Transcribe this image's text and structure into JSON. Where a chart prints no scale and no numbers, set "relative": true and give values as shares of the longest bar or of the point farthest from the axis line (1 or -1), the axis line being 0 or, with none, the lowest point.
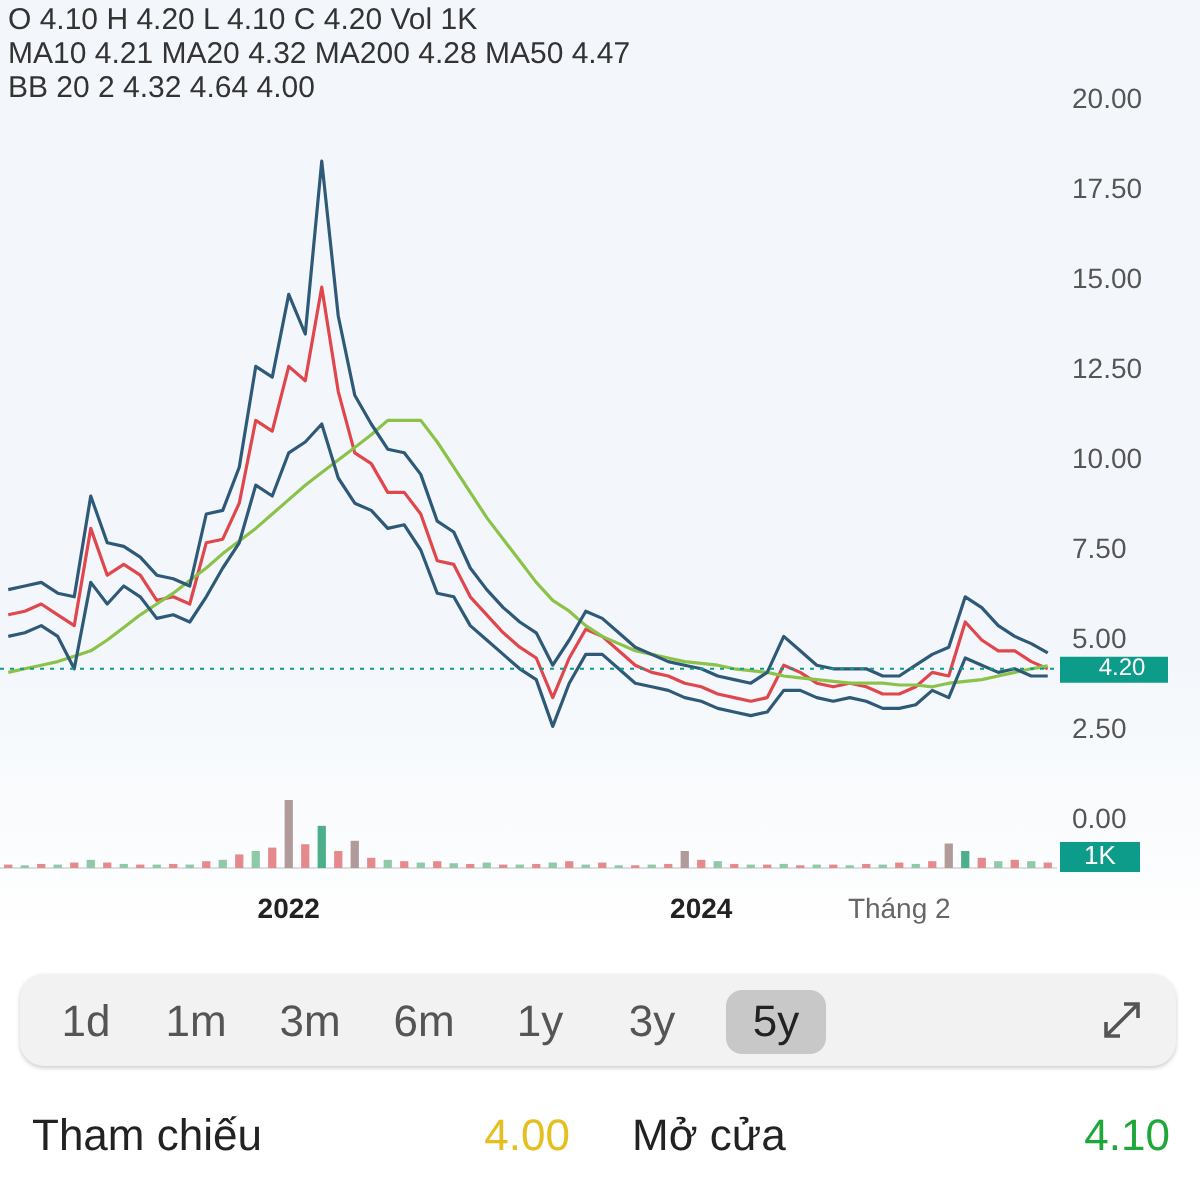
{
  "chart_data": [
    {
      "type": "line",
      "categories": [
        null,
        null,
        null,
        null,
        null,
        null,
        null,
        null,
        null,
        null,
        null,
        null,
        null,
        null,
        null,
        null,
        null,
        "2022",
        null,
        null,
        null,
        null,
        null,
        null,
        null,
        null,
        null,
        null,
        null,
        null,
        null,
        null,
        null,
        null,
        null,
        null,
        null,
        null,
        null,
        null,
        null,
        null,
        "2024",
        null,
        null,
        null,
        null,
        null,
        null,
        null,
        null,
        null,
        null,
        null,
        "Tháng 2",
        null,
        null,
        null,
        null,
        null,
        null,
        null,
        null,
        null
      ],
      "series": [
        {
          "color": "#2e5a78",
          "values": [
            6.4,
            6.5,
            6.6,
            6.3,
            6.2,
            9.0,
            7.7,
            7.6,
            7.3,
            6.8,
            6.7,
            6.5,
            8.5,
            8.6,
            9.8,
            12.6,
            12.3,
            14.6,
            13.5,
            18.3,
            14.0,
            11.8,
            11.0,
            10.3,
            10.2,
            9.6,
            8.3,
            8.0,
            7.0,
            6.4,
            5.9,
            5.5,
            5.2,
            4.3,
            5.0,
            5.8,
            5.6,
            5.2,
            4.8,
            4.6,
            4.4,
            4.3,
            4.2,
            4.0,
            3.9,
            3.8,
            4.1,
            5.1,
            4.7,
            4.3,
            4.2,
            4.2,
            4.2,
            4.0,
            4.0,
            4.3,
            4.6,
            4.8,
            6.2,
            5.9,
            5.4,
            5.1,
            4.9,
            4.64
          ]
        },
        {
          "color": "#2e5a78",
          "values": [
            5.1,
            5.2,
            5.4,
            5.1,
            4.2,
            6.6,
            6.0,
            6.5,
            6.2,
            5.6,
            5.7,
            5.5,
            6.2,
            7.0,
            7.7,
            9.3,
            9.0,
            10.2,
            10.5,
            11.0,
            9.5,
            8.8,
            8.6,
            8.1,
            8.2,
            7.5,
            6.3,
            6.2,
            5.4,
            5.0,
            4.6,
            4.2,
            3.9,
            2.6,
            3.8,
            4.6,
            4.6,
            4.2,
            3.8,
            3.7,
            3.6,
            3.4,
            3.3,
            3.1,
            3.0,
            2.9,
            3.0,
            3.6,
            3.6,
            3.4,
            3.3,
            3.4,
            3.3,
            3.1,
            3.1,
            3.2,
            3.6,
            3.4,
            4.5,
            4.3,
            4.1,
            4.2,
            4.0,
            4.0
          ]
        },
        {
          "color": "#8bc34a",
          "values": [
            4.1,
            4.2,
            4.3,
            4.4,
            4.55,
            4.7,
            5.0,
            5.35,
            5.7,
            6.0,
            6.3,
            6.65,
            7.0,
            7.4,
            7.75,
            8.1,
            8.5,
            8.9,
            9.3,
            9.65,
            10.0,
            10.35,
            10.7,
            11.1,
            11.1,
            11.1,
            10.5,
            9.8,
            9.1,
            8.4,
            7.8,
            7.2,
            6.6,
            6.1,
            5.8,
            5.4,
            5.1,
            4.9,
            4.7,
            4.6,
            4.5,
            4.4,
            4.35,
            4.3,
            4.2,
            4.15,
            4.1,
            4.0,
            3.95,
            3.9,
            3.85,
            3.8,
            3.8,
            3.8,
            3.75,
            3.75,
            3.7,
            3.8,
            3.85,
            3.9,
            4.0,
            4.1,
            4.2,
            4.28
          ]
        },
        {
          "color": "#e0474c",
          "values": [
            5.7,
            5.8,
            6.0,
            5.7,
            5.4,
            8.1,
            6.8,
            7.1,
            6.8,
            6.1,
            6.2,
            6.0,
            7.7,
            7.8,
            8.8,
            11.1,
            10.8,
            12.6,
            12.2,
            14.8,
            11.9,
            10.2,
            9.9,
            9.1,
            9.1,
            8.5,
            7.2,
            7.1,
            6.2,
            5.7,
            5.2,
            4.8,
            4.5,
            3.4,
            4.5,
            5.3,
            5.1,
            4.7,
            4.3,
            4.1,
            4.0,
            3.8,
            3.7,
            3.5,
            3.4,
            3.3,
            3.4,
            4.3,
            4.1,
            3.8,
            3.7,
            3.8,
            3.7,
            3.5,
            3.5,
            3.7,
            4.1,
            4.0,
            5.5,
            5.0,
            4.7,
            4.7,
            4.4,
            4.2
          ]
        }
      ],
      "ylim": [
        0,
        20
      ],
      "yticks": [
        {
          "value": 0,
          "label": "0.00"
        },
        {
          "value": 2.5,
          "label": "2.50"
        },
        {
          "value": 5,
          "label": "5.00"
        },
        {
          "value": 7.5,
          "label": "7.50"
        },
        {
          "value": 10,
          "label": "10.00"
        },
        {
          "value": 12.5,
          "label": "12.50"
        },
        {
          "value": 15,
          "label": "15.00"
        },
        {
          "value": 17.5,
          "label": "17.50"
        },
        {
          "value": 20,
          "label": "20.00"
        }
      ],
      "ref_lines": [
        {
          "axis": "y",
          "value": 4.2,
          "label": "4.20",
          "color": "#0e9c8a",
          "line_style": "dotted"
        }
      ],
      "annotations": [
        "O 4.10 H 4.20 L 4.10 C 4.20 Vol 1K",
        "MA10 4.21 MA20 4.32 MA200 4.28 MA50 4.47",
        "BB 20 2 4.32 4.64 4.00"
      ],
      "marker": "none",
      "legend": false,
      "grid": false
    },
    {
      "type": "bar",
      "relative": true,
      "categories": [
        null,
        null,
        null,
        null,
        null,
        null,
        null,
        null,
        null,
        null,
        null,
        null,
        null,
        null,
        null,
        null,
        null,
        null,
        null,
        null,
        null,
        null,
        null,
        null,
        null,
        null,
        null,
        null,
        null,
        null,
        null,
        null,
        null,
        null,
        null,
        null,
        null,
        null,
        null,
        null,
        null,
        null,
        null,
        null,
        null,
        null,
        null,
        null,
        null,
        null,
        null,
        null,
        null,
        null,
        null,
        null,
        null,
        null,
        null,
        null,
        null,
        null,
        null,
        null
      ],
      "values": [
        0.05,
        0.04,
        0.06,
        0.05,
        0.08,
        0.12,
        0.08,
        0.06,
        0.05,
        0.05,
        0.06,
        0.05,
        0.1,
        0.12,
        0.2,
        0.25,
        0.3,
        1.0,
        0.35,
        0.62,
        0.25,
        0.4,
        0.15,
        0.12,
        0.1,
        0.08,
        0.1,
        0.07,
        0.06,
        0.08,
        0.05,
        0.05,
        0.06,
        0.08,
        0.1,
        0.05,
        0.08,
        0.04,
        0.04,
        0.05,
        0.06,
        0.25,
        0.12,
        0.1,
        0.06,
        0.05,
        0.05,
        0.06,
        0.04,
        0.05,
        0.05,
        0.04,
        0.06,
        0.05,
        0.08,
        0.06,
        0.1,
        0.36,
        0.25,
        0.15,
        0.1,
        0.12,
        0.1,
        0.08
      ],
      "colors": [
        "#e58a8c",
        "#8fc9a8",
        "#e58a8c",
        "#8fc9a8",
        "#e58a8c",
        "#8fc9a8",
        "#e58a8c",
        "#8fc9a8",
        "#e58a8c",
        "#8fc9a8",
        "#e58a8c",
        "#8fc9a8",
        "#e58a8c",
        "#8fc9a8",
        "#e58a8c",
        "#8fc9a8",
        "#e58a8c",
        "#b09a9a",
        "#e58a8c",
        "#4caf8a",
        "#e58a8c",
        "#b09a9a",
        "#e58a8c",
        "#8fc9a8",
        "#e58a8c",
        "#8fc9a8",
        "#e58a8c",
        "#8fc9a8",
        "#e58a8c",
        "#8fc9a8",
        "#e58a8c",
        "#8fc9a8",
        "#e58a8c",
        "#8fc9a8",
        "#e58a8c",
        "#8fc9a8",
        "#e58a8c",
        "#8fc9a8",
        "#e58a8c",
        "#8fc9a8",
        "#e58a8c",
        "#b09a9a",
        "#e58a8c",
        "#8fc9a8",
        "#e58a8c",
        "#8fc9a8",
        "#e58a8c",
        "#8fc9a8",
        "#e58a8c",
        "#8fc9a8",
        "#e58a8c",
        "#8fc9a8",
        "#e58a8c",
        "#8fc9a8",
        "#e58a8c",
        "#8fc9a8",
        "#e58a8c",
        "#b09a9a",
        "#4caf8a",
        "#e58a8c",
        "#8fc9a8",
        "#e58a8c",
        "#8fc9a8",
        "#e58a8c"
      ],
      "annotations": [
        "1K"
      ],
      "legend": false,
      "grid": false
    },
    {
      "type": "other",
      "annotations": [
        "1d",
        "1m",
        "3m",
        "6m",
        "1y",
        "3y",
        "5y",
        "Tham chiếu",
        "4.00",
        "Mở cửa",
        "4.10"
      ]
    }
  ]
}
